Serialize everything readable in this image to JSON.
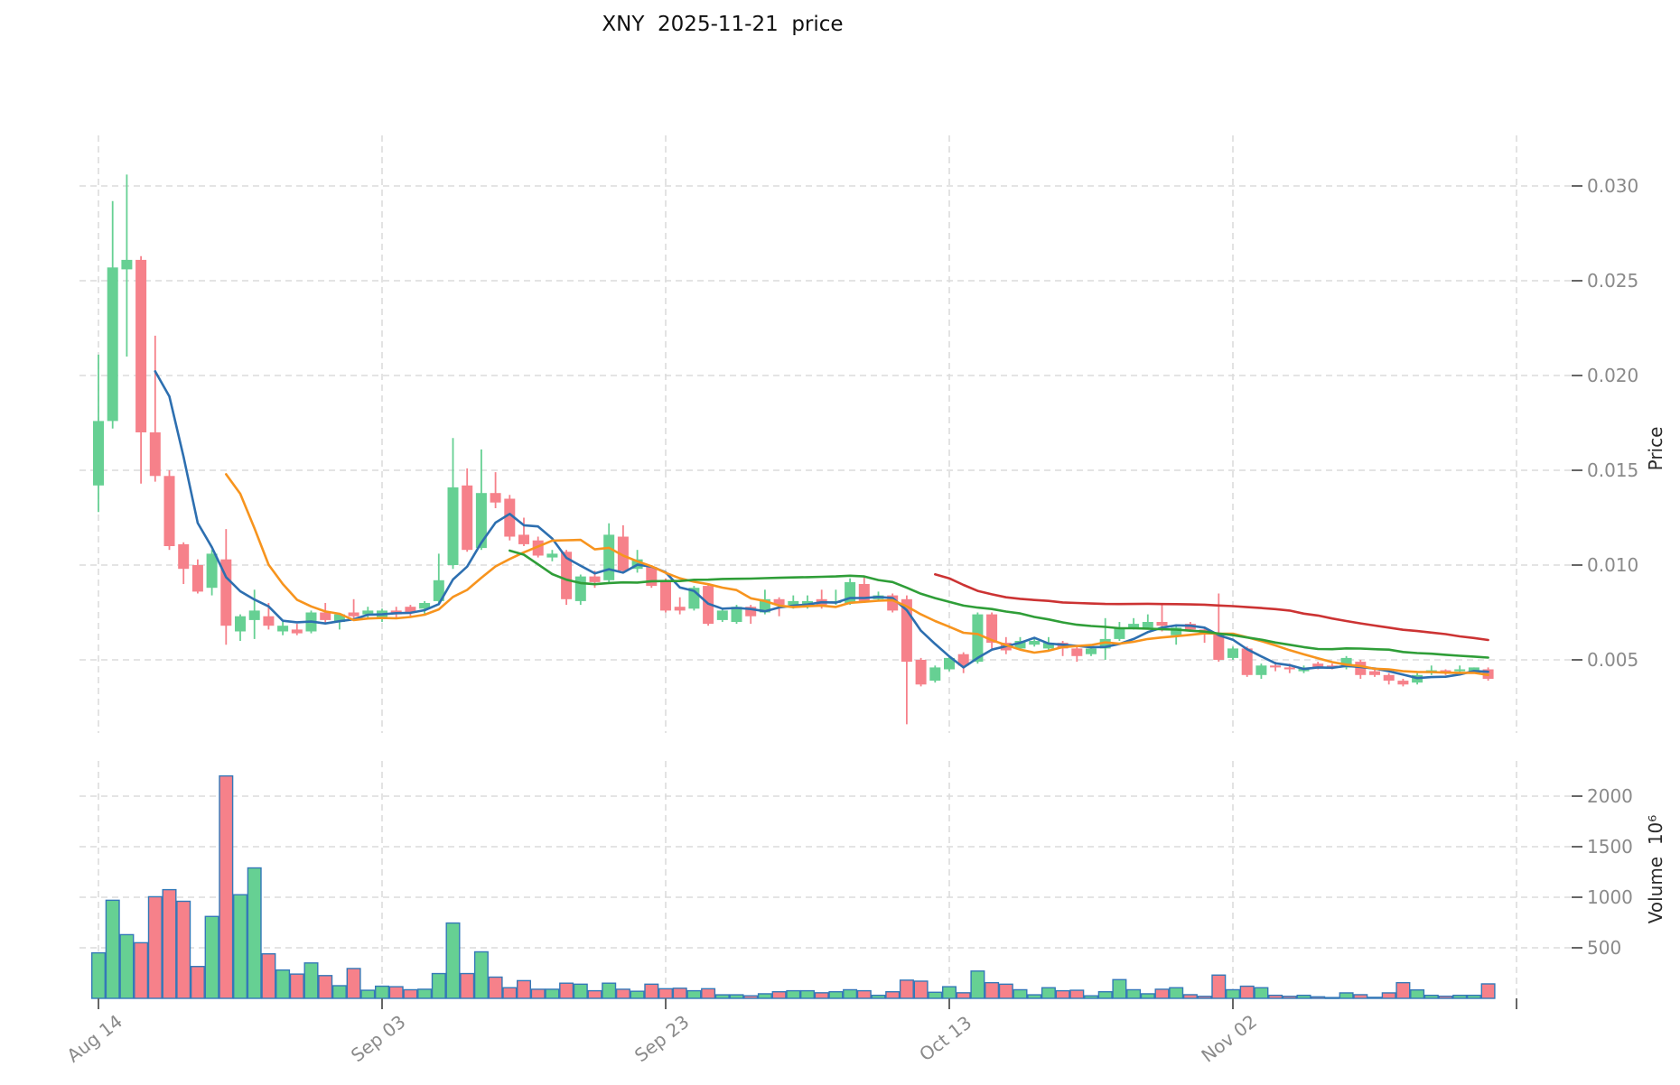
{
  "title": "XNY  2025-11-21  price",
  "axes": {
    "price_label": "Price",
    "volume_label": "Volume  10⁶",
    "price_ticks": [
      {
        "v": 0.005,
        "label": "0.005"
      },
      {
        "v": 0.01,
        "label": "0.010"
      },
      {
        "v": 0.015,
        "label": "0.015"
      },
      {
        "v": 0.02,
        "label": "0.020"
      },
      {
        "v": 0.025,
        "label": "0.025"
      },
      {
        "v": 0.03,
        "label": "0.030"
      }
    ],
    "volume_ticks": [
      {
        "v": 500,
        "label": "500"
      },
      {
        "v": 1000,
        "label": "1000"
      },
      {
        "v": 1500,
        "label": "1500"
      },
      {
        "v": 2000,
        "label": "2000"
      }
    ],
    "x_ticks": [
      {
        "pos": 0,
        "label": "Aug 14"
      },
      {
        "pos": 20,
        "label": "Sep 03"
      },
      {
        "pos": 40,
        "label": "Sep 23"
      },
      {
        "pos": 60,
        "label": "Oct 13"
      },
      {
        "pos": 80,
        "label": "Nov 02"
      },
      {
        "pos": 100,
        "label": ""
      }
    ]
  },
  "style": {
    "up_color": "#66d093",
    "down_color": "#f6818a",
    "volume_edge_color": "#3478b8",
    "grid_color": "#dcdcdc",
    "tick_color": "#666666",
    "tick_label_color": "#8a8a8a",
    "axis_label_color": "#2b2b2b",
    "title_color": "#111111"
  },
  "chart_data": {
    "type": "candlestick_with_volume",
    "x_unit": "trading day index (day 0 = Aug 14, daily bars through Nov 20)",
    "volume_unit": "10^6",
    "price_ylim": [
      0.0011,
      0.0327
    ],
    "volume_ylim": [
      0,
      2350
    ],
    "xlim": [
      -1.3,
      103.9
    ],
    "grid": true,
    "legend_position": "none",
    "moving_averages": [
      {
        "name": "MA5",
        "period": 5,
        "color": "#2d6fb0"
      },
      {
        "name": "MA10",
        "period": 10,
        "color": "#f7941e"
      },
      {
        "name": "MA30",
        "period": 30,
        "color": "#2f9e38"
      },
      {
        "name": "MA60",
        "period": 60,
        "color": "#cc3333"
      }
    ],
    "ohlcv_columns": [
      "open",
      "high",
      "low",
      "close",
      "volume"
    ],
    "candles": [
      [
        0.0142,
        0.0211,
        0.0128,
        0.0176,
        450
      ],
      [
        0.0176,
        0.0292,
        0.0172,
        0.0257,
        970
      ],
      [
        0.0256,
        0.0306,
        0.021,
        0.0261,
        630
      ],
      [
        0.0261,
        0.0263,
        0.0143,
        0.017,
        550
      ],
      [
        0.017,
        0.0221,
        0.0144,
        0.0147,
        1005
      ],
      [
        0.0147,
        0.015,
        0.0108,
        0.011,
        1075
      ],
      [
        0.0111,
        0.0112,
        0.009,
        0.0098,
        960
      ],
      [
        0.01,
        0.0103,
        0.0085,
        0.0086,
        315
      ],
      [
        0.0088,
        0.0108,
        0.0084,
        0.0106,
        810
      ],
      [
        0.0103,
        0.0119,
        0.0058,
        0.0068,
        2200
      ],
      [
        0.0065,
        0.0074,
        0.006,
        0.0073,
        1025
      ],
      [
        0.0071,
        0.0087,
        0.0061,
        0.0076,
        1290
      ],
      [
        0.0073,
        0.008,
        0.0066,
        0.0068,
        440
      ],
      [
        0.0065,
        0.007,
        0.0063,
        0.0068,
        280
      ],
      [
        0.0066,
        0.0069,
        0.0063,
        0.0064,
        240
      ],
      [
        0.0065,
        0.0076,
        0.0064,
        0.0075,
        350
      ],
      [
        0.0075,
        0.008,
        0.0069,
        0.0071,
        225
      ],
      [
        0.007,
        0.0074,
        0.0066,
        0.0074,
        125
      ],
      [
        0.0075,
        0.0082,
        0.0072,
        0.0073,
        295
      ],
      [
        0.0074,
        0.0078,
        0.0072,
        0.0076,
        80
      ],
      [
        0.0072,
        0.0077,
        0.007,
        0.0076,
        120
      ],
      [
        0.0076,
        0.0078,
        0.0072,
        0.0074,
        115
      ],
      [
        0.0078,
        0.0079,
        0.0073,
        0.0075,
        85
      ],
      [
        0.0077,
        0.0081,
        0.0074,
        0.008,
        90
      ],
      [
        0.0081,
        0.0106,
        0.008,
        0.0092,
        245
      ],
      [
        0.01,
        0.0167,
        0.0098,
        0.0141,
        745
      ],
      [
        0.0142,
        0.0151,
        0.0107,
        0.0108,
        245
      ],
      [
        0.0109,
        0.0161,
        0.0108,
        0.0138,
        460
      ],
      [
        0.0138,
        0.0149,
        0.013,
        0.0133,
        210
      ],
      [
        0.0135,
        0.0137,
        0.0113,
        0.0115,
        105
      ],
      [
        0.0116,
        0.0125,
        0.011,
        0.0111,
        175
      ],
      [
        0.0113,
        0.0115,
        0.0104,
        0.0105,
        90
      ],
      [
        0.0104,
        0.0108,
        0.0102,
        0.0106,
        90
      ],
      [
        0.0107,
        0.0108,
        0.0079,
        0.0082,
        150
      ],
      [
        0.0081,
        0.0095,
        0.0079,
        0.0094,
        140
      ],
      [
        0.0094,
        0.0097,
        0.0088,
        0.0091,
        75
      ],
      [
        0.0092,
        0.0122,
        0.0091,
        0.0116,
        150
      ],
      [
        0.0115,
        0.0121,
        0.0096,
        0.0097,
        90
      ],
      [
        0.0098,
        0.0108,
        0.0096,
        0.0103,
        70
      ],
      [
        0.0099,
        0.01,
        0.0088,
        0.0089,
        140
      ],
      [
        0.0092,
        0.0093,
        0.0075,
        0.0076,
        95
      ],
      [
        0.0078,
        0.0083,
        0.0074,
        0.0076,
        100
      ],
      [
        0.0077,
        0.0089,
        0.0076,
        0.0088,
        75
      ],
      [
        0.0089,
        0.009,
        0.0068,
        0.0069,
        95
      ],
      [
        0.0071,
        0.0077,
        0.007,
        0.0076,
        35
      ],
      [
        0.007,
        0.0079,
        0.0069,
        0.0078,
        35
      ],
      [
        0.0078,
        0.0079,
        0.0069,
        0.0073,
        25
      ],
      [
        0.0075,
        0.0087,
        0.0074,
        0.0082,
        45
      ],
      [
        0.0082,
        0.0083,
        0.0073,
        0.0079,
        65
      ],
      [
        0.0079,
        0.0084,
        0.0077,
        0.0081,
        75
      ],
      [
        0.0078,
        0.0084,
        0.0077,
        0.0081,
        75
      ],
      [
        0.0082,
        0.0087,
        0.0077,
        0.0079,
        55
      ],
      [
        0.008,
        0.0087,
        0.0079,
        0.0081,
        65
      ],
      [
        0.008,
        0.0093,
        0.0079,
        0.0091,
        85
      ],
      [
        0.009,
        0.0094,
        0.008,
        0.0081,
        75
      ],
      [
        0.0082,
        0.0086,
        0.0081,
        0.0084,
        30
      ],
      [
        0.0084,
        0.0085,
        0.0075,
        0.0076,
        65
      ],
      [
        0.0082,
        0.0084,
        0.0016,
        0.0049,
        180
      ],
      [
        0.005,
        0.0051,
        0.0036,
        0.0037,
        170
      ],
      [
        0.0039,
        0.0047,
        0.0038,
        0.0046,
        60
      ],
      [
        0.0045,
        0.0052,
        0.0044,
        0.0051,
        115
      ],
      [
        0.0053,
        0.0054,
        0.0043,
        0.0047,
        55
      ],
      [
        0.0049,
        0.0075,
        0.0048,
        0.0074,
        270
      ],
      [
        0.0074,
        0.0075,
        0.0056,
        0.0059,
        155
      ],
      [
        0.0059,
        0.0062,
        0.0053,
        0.0055,
        140
      ],
      [
        0.0056,
        0.0062,
        0.0055,
        0.006,
        85
      ],
      [
        0.0058,
        0.0061,
        0.0057,
        0.006,
        35
      ],
      [
        0.0056,
        0.0062,
        0.0055,
        0.0059,
        105
      ],
      [
        0.0059,
        0.006,
        0.0052,
        0.0056,
        75
      ],
      [
        0.0056,
        0.0057,
        0.0049,
        0.0052,
        80
      ],
      [
        0.0053,
        0.0057,
        0.0052,
        0.0056,
        25
      ],
      [
        0.0056,
        0.0072,
        0.005,
        0.0061,
        65
      ],
      [
        0.0061,
        0.007,
        0.006,
        0.0067,
        185
      ],
      [
        0.0067,
        0.0072,
        0.0066,
        0.0069,
        85
      ],
      [
        0.0067,
        0.0074,
        0.0066,
        0.007,
        45
      ],
      [
        0.007,
        0.008,
        0.0065,
        0.0068,
        90
      ],
      [
        0.0063,
        0.0068,
        0.0058,
        0.0067,
        105
      ],
      [
        0.0069,
        0.007,
        0.0065,
        0.0066,
        36
      ],
      [
        0.0066,
        0.0067,
        0.0059,
        0.0064,
        20
      ],
      [
        0.0064,
        0.0085,
        0.0049,
        0.005,
        230
      ],
      [
        0.0051,
        0.0057,
        0.005,
        0.0056,
        85
      ],
      [
        0.0056,
        0.0057,
        0.0041,
        0.0042,
        120
      ],
      [
        0.0042,
        0.0048,
        0.004,
        0.0047,
        105
      ],
      [
        0.0047,
        0.0049,
        0.0044,
        0.0046,
        30
      ],
      [
        0.0046,
        0.0048,
        0.0043,
        0.0045,
        20
      ],
      [
        0.0044,
        0.0047,
        0.0043,
        0.0046,
        30
      ],
      [
        0.0048,
        0.0049,
        0.0045,
        0.0046,
        15
      ],
      [
        0.0047,
        0.0048,
        0.0045,
        0.0046,
        8
      ],
      [
        0.0046,
        0.0052,
        0.0045,
        0.0051,
        54
      ],
      [
        0.0049,
        0.005,
        0.004,
        0.0042,
        36
      ],
      [
        0.0044,
        0.0046,
        0.0041,
        0.0042,
        10
      ],
      [
        0.0042,
        0.0043,
        0.0037,
        0.0039,
        54
      ],
      [
        0.0039,
        0.004,
        0.0036,
        0.0037,
        155
      ],
      [
        0.0038,
        0.0043,
        0.0037,
        0.0042,
        83
      ],
      [
        0.0043,
        0.0047,
        0.0042,
        0.00445,
        30
      ],
      [
        0.00445,
        0.0045,
        0.0042,
        0.0043,
        21
      ],
      [
        0.0044,
        0.0047,
        0.0043,
        0.0045,
        30
      ],
      [
        0.0044,
        0.0046,
        0.0043,
        0.0046,
        30
      ],
      [
        0.0045,
        0.0046,
        0.0039,
        0.004,
        143
      ]
    ]
  }
}
